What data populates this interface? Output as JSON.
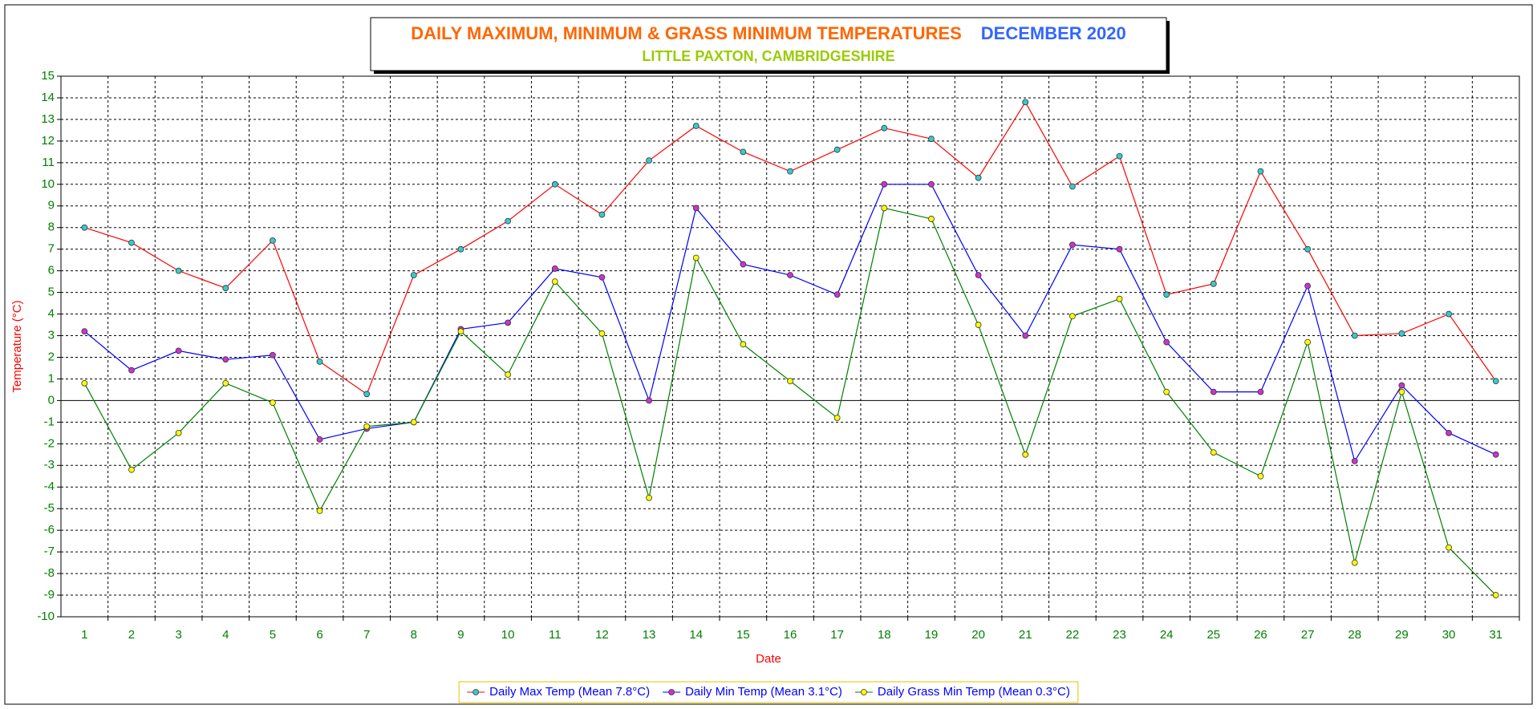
{
  "chart_data": {
    "type": "line",
    "title": "DAILY MAXIMUM, MINIMUM & GRASS MINIMUM TEMPERATURES",
    "title_period": "DECEMBER 2020",
    "subtitle": "LITTLE PAXTON, CAMBRIDGESHIRE",
    "x_label": "Date",
    "y_label": "Temperature (°C)",
    "categories": [
      "1",
      "2",
      "3",
      "4",
      "5",
      "6",
      "7",
      "8",
      "9",
      "10",
      "11",
      "12",
      "13",
      "14",
      "15",
      "16",
      "17",
      "18",
      "19",
      "20",
      "21",
      "22",
      "23",
      "24",
      "25",
      "26",
      "27",
      "28",
      "29",
      "30",
      "31"
    ],
    "series": [
      {
        "name": "Daily Max Temp (Mean 7.8°C)",
        "color": "#ff0000",
        "marker_color": "#33cccc",
        "values": [
          8.0,
          7.3,
          6.0,
          5.2,
          7.4,
          1.8,
          0.3,
          5.8,
          7.0,
          8.3,
          10.0,
          8.6,
          11.1,
          12.7,
          11.5,
          10.6,
          11.6,
          12.6,
          12.1,
          10.3,
          13.8,
          9.9,
          11.3,
          4.9,
          5.4,
          10.6,
          7.0,
          3.0,
          3.1,
          4.0,
          0.9
        ]
      },
      {
        "name": "Daily Min Temp (Mean 3.1°C)",
        "color": "#0000ff",
        "marker_color": "#cc33cc",
        "values": [
          3.2,
          1.4,
          2.3,
          1.9,
          2.1,
          -1.8,
          -1.3,
          -1.0,
          3.3,
          3.6,
          6.1,
          5.7,
          0.0,
          8.9,
          6.3,
          5.8,
          4.9,
          10.0,
          10.0,
          5.8,
          3.0,
          7.2,
          7.0,
          2.7,
          0.4,
          0.4,
          5.3,
          -2.8,
          0.7,
          -1.5,
          -2.5
        ]
      },
      {
        "name": "Daily Grass Min Temp (Mean 0.3°C)",
        "color": "#008000",
        "marker_color": "#ffff00",
        "values": [
          0.8,
          -3.2,
          -1.5,
          0.8,
          -0.1,
          -5.1,
          -1.2,
          -1.0,
          3.2,
          1.2,
          5.5,
          3.1,
          -4.5,
          6.6,
          2.6,
          0.9,
          -0.8,
          8.9,
          8.4,
          3.5,
          -2.5,
          3.9,
          4.7,
          0.4,
          -2.4,
          -3.5,
          2.7,
          -7.5,
          0.4,
          -6.8,
          -9.0
        ]
      }
    ],
    "ylim": [
      -10,
      15
    ],
    "yticks": [
      -10,
      -9,
      -8,
      -7,
      -6,
      -5,
      -4,
      -3,
      -2,
      -1,
      0,
      1,
      2,
      3,
      4,
      5,
      6,
      7,
      8,
      9,
      10,
      11,
      12,
      13,
      14,
      15
    ],
    "grid": true,
    "legend": "bottom"
  }
}
